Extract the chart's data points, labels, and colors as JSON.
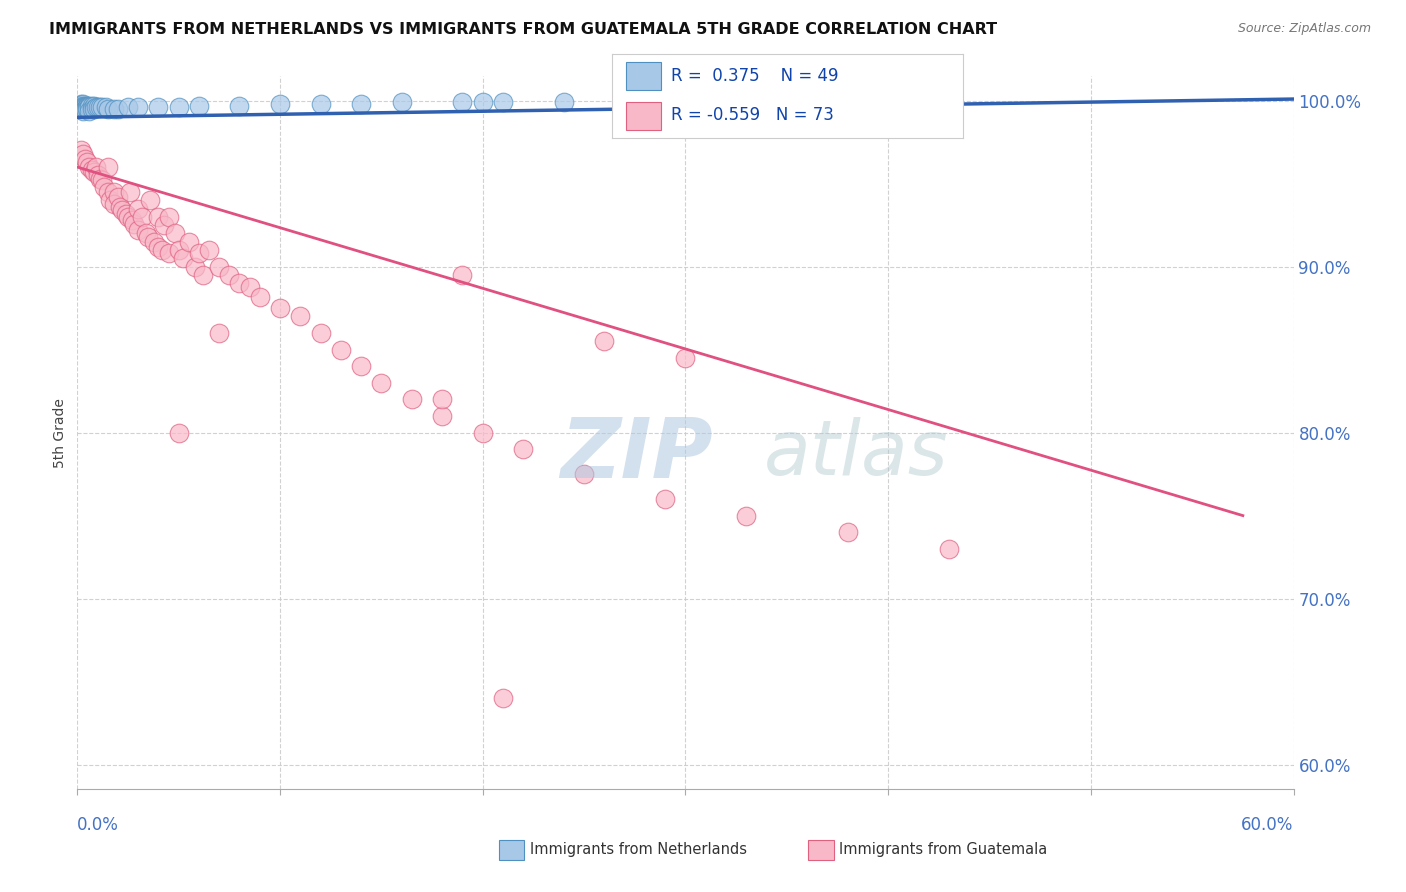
{
  "title": "IMMIGRANTS FROM NETHERLANDS VS IMMIGRANTS FROM GUATEMALA 5TH GRADE CORRELATION CHART",
  "source": "Source: ZipAtlas.com",
  "ylabel": "5th Grade",
  "xlabel_bottom_left": "0.0%",
  "xlabel_bottom_right": "60.0%",
  "ytick_labels": [
    "100.0%",
    "90.0%",
    "80.0%",
    "70.0%",
    "60.0%"
  ],
  "ytick_values": [
    1.0,
    0.9,
    0.8,
    0.7,
    0.6
  ],
  "legend_blue_label": "Immigrants from Netherlands",
  "legend_pink_label": "Immigrants from Guatemala",
  "R_blue": 0.375,
  "N_blue": 49,
  "R_pink": -0.559,
  "N_pink": 73,
  "blue_fill": "#a8c8e8",
  "blue_edge": "#5090c0",
  "pink_fill": "#f8b8c8",
  "pink_edge": "#e06080",
  "blue_line_color": "#3060b0",
  "pink_line_color": "#e05080",
  "xlim": [
    0.0,
    0.6
  ],
  "ylim": [
    0.585,
    1.015
  ],
  "grid_color": "#cccccc",
  "axis_color": "#4472c4",
  "bg_color": "#ffffff",
  "title_color": "#111111",
  "blue_x": [
    0.001,
    0.001,
    0.001,
    0.002,
    0.002,
    0.002,
    0.002,
    0.003,
    0.003,
    0.003,
    0.003,
    0.004,
    0.004,
    0.004,
    0.005,
    0.005,
    0.005,
    0.006,
    0.006,
    0.006,
    0.007,
    0.007,
    0.008,
    0.008,
    0.009,
    0.01,
    0.011,
    0.012,
    0.014,
    0.015,
    0.018,
    0.02,
    0.025,
    0.03,
    0.04,
    0.05,
    0.06,
    0.08,
    0.1,
    0.12,
    0.14,
    0.16,
    0.19,
    0.21,
    0.24,
    0.27,
    0.3,
    0.35,
    0.2
  ],
  "blue_y": [
    0.997,
    0.996,
    0.995,
    0.998,
    0.997,
    0.996,
    0.995,
    0.998,
    0.997,
    0.996,
    0.994,
    0.997,
    0.996,
    0.995,
    0.997,
    0.996,
    0.995,
    0.997,
    0.996,
    0.994,
    0.997,
    0.995,
    0.997,
    0.995,
    0.996,
    0.996,
    0.996,
    0.996,
    0.996,
    0.995,
    0.995,
    0.995,
    0.996,
    0.996,
    0.996,
    0.996,
    0.997,
    0.997,
    0.998,
    0.998,
    0.998,
    0.999,
    0.999,
    0.999,
    0.999,
    0.999,
    0.999,
    0.999,
    0.999
  ],
  "pink_x": [
    0.002,
    0.003,
    0.004,
    0.005,
    0.006,
    0.007,
    0.008,
    0.009,
    0.01,
    0.011,
    0.012,
    0.013,
    0.015,
    0.015,
    0.016,
    0.018,
    0.018,
    0.02,
    0.021,
    0.022,
    0.024,
    0.025,
    0.026,
    0.027,
    0.028,
    0.03,
    0.03,
    0.032,
    0.034,
    0.035,
    0.036,
    0.038,
    0.04,
    0.04,
    0.042,
    0.043,
    0.045,
    0.045,
    0.048,
    0.05,
    0.052,
    0.055,
    0.058,
    0.06,
    0.062,
    0.065,
    0.07,
    0.075,
    0.08,
    0.085,
    0.09,
    0.1,
    0.11,
    0.12,
    0.13,
    0.14,
    0.15,
    0.165,
    0.18,
    0.2,
    0.22,
    0.25,
    0.29,
    0.33,
    0.38,
    0.43,
    0.19,
    0.26,
    0.3,
    0.18,
    0.05,
    0.07,
    0.21
  ],
  "pink_y": [
    0.97,
    0.968,
    0.965,
    0.963,
    0.96,
    0.958,
    0.957,
    0.96,
    0.955,
    0.953,
    0.952,
    0.948,
    0.96,
    0.945,
    0.94,
    0.945,
    0.938,
    0.942,
    0.936,
    0.934,
    0.932,
    0.93,
    0.945,
    0.928,
    0.926,
    0.935,
    0.922,
    0.93,
    0.92,
    0.918,
    0.94,
    0.915,
    0.93,
    0.912,
    0.91,
    0.925,
    0.93,
    0.908,
    0.92,
    0.91,
    0.905,
    0.915,
    0.9,
    0.908,
    0.895,
    0.91,
    0.9,
    0.895,
    0.89,
    0.888,
    0.882,
    0.875,
    0.87,
    0.86,
    0.85,
    0.84,
    0.83,
    0.82,
    0.81,
    0.8,
    0.79,
    0.775,
    0.76,
    0.75,
    0.74,
    0.73,
    0.895,
    0.855,
    0.845,
    0.82,
    0.8,
    0.86,
    0.64
  ],
  "blue_line_x": [
    0.0,
    0.6
  ],
  "blue_line_y": [
    0.99,
    1.001
  ],
  "pink_line_x": [
    0.0,
    0.575
  ],
  "pink_line_y": [
    0.96,
    0.75
  ],
  "hline_y": 0.7,
  "hline2_y": 0.6
}
